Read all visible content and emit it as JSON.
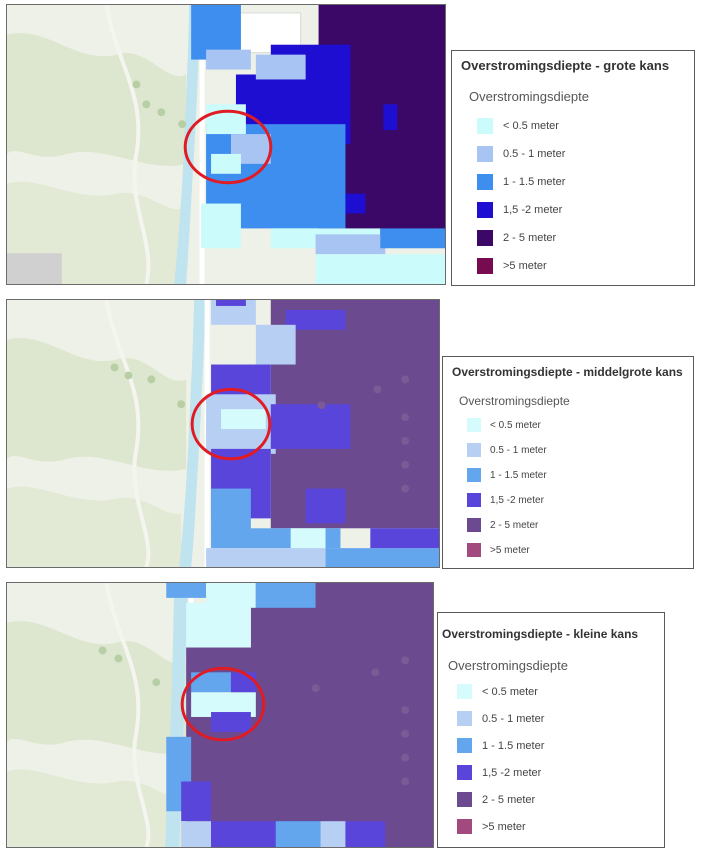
{
  "panels": [
    {
      "id": "grote",
      "title": "Overstromingsdiepte - grote kans",
      "subtitle": "Overstromingsdiepte",
      "classes": [
        {
          "label": "< 0.5 meter",
          "color": "#ccfbfb"
        },
        {
          "label": "0.5 - 1 meter",
          "color": "#a7c4f3"
        },
        {
          "label": "1 - 1.5 meter",
          "color": "#3e8ef0"
        },
        {
          "label": "1,5 -2 meter",
          "color": "#1d0ed1"
        },
        {
          "label": "2 - 5 meter",
          "color": "#3c0867"
        },
        {
          "label": ">5 meter",
          "color": "#770b50"
        }
      ]
    },
    {
      "id": "middelgrote",
      "title": "Overstromingsdiepte - middelgrote kans",
      "subtitle": "Overstromingsdiepte",
      "classes": [
        {
          "label": "< 0.5 meter",
          "color": "#d5fbfc"
        },
        {
          "label": "0.5 - 1 meter",
          "color": "#b8cff4"
        },
        {
          "label": "1 - 1.5 meter",
          "color": "#64a6ee"
        },
        {
          "label": "1,5 -2 meter",
          "color": "#5a45db"
        },
        {
          "label": "2 - 5 meter",
          "color": "#6c4a8f"
        },
        {
          "label": ">5 meter",
          "color": "#a24a7e"
        }
      ]
    },
    {
      "id": "kleine",
      "title": "Overstromingsdiepte - kleine kans",
      "subtitle": "Overstromingsdiepte",
      "classes": [
        {
          "label": "< 0.5 meter",
          "color": "#d5fbfc"
        },
        {
          "label": "0.5 - 1 meter",
          "color": "#b8cff4"
        },
        {
          "label": "1 - 1.5 meter",
          "color": "#64a6ee"
        },
        {
          "label": "1,5 -2 meter",
          "color": "#5a45db"
        },
        {
          "label": "2 - 5 meter",
          "color": "#6c4a8f"
        },
        {
          "label": ">5 meter",
          "color": "#a24a7e"
        }
      ]
    }
  ],
  "colors": {
    "land": "#eef1e7",
    "hill": "#dce6cd",
    "river": "#bfe3ef",
    "road": "#ffffff",
    "highlight_circle": "#e01b24"
  }
}
